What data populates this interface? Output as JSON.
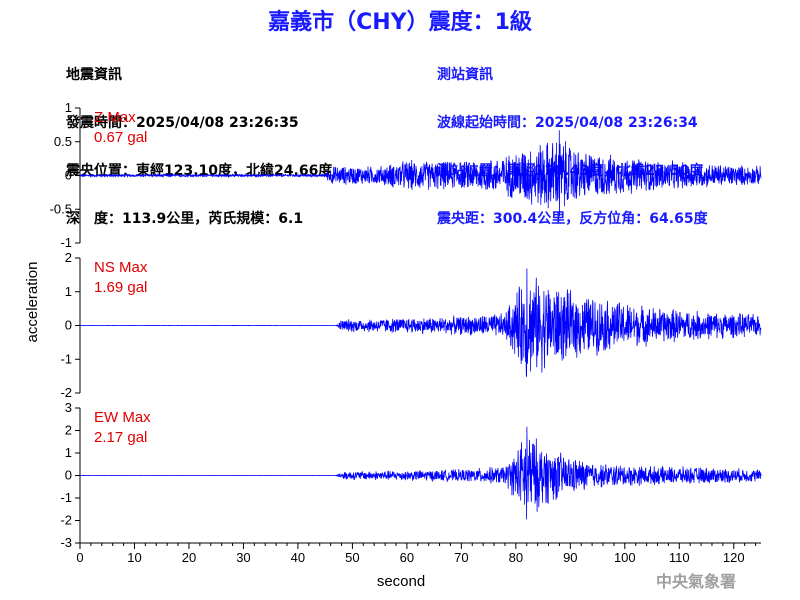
{
  "title": "嘉義市（CHY）震度：1級",
  "quake_info": {
    "heading": "地震資訊",
    "time": "發震時間：2025/04/08 23:26:35",
    "location": "震央位置：東經123.10度，北緯24.66度",
    "depth_mag": "深　度：113.9公里，芮氏規模：6.1"
  },
  "station_info": {
    "heading": "測站資訊",
    "wave_time": "波線起始時間：2025/04/08 23:26:34",
    "location": "測站位置：東經120.43度，北緯23.50度",
    "distance": "震央距：300.4公里，反方位角：64.65度"
  },
  "agency": "中央氣象署",
  "chart_data": {
    "type": "line",
    "xlabel": "second",
    "ylabel": "acceleration",
    "xlim": [
      0,
      125
    ],
    "xticks": [
      0,
      10,
      20,
      30,
      40,
      50,
      60,
      70,
      80,
      90,
      100,
      110,
      120
    ],
    "series_color": "#0000ff",
    "label_color": "#e00000",
    "panels": [
      {
        "name": "Z Max",
        "max_label": "0.67 gal",
        "max_value": 0.67,
        "ylim": [
          -1,
          1
        ],
        "yticks": [
          -1,
          -0.5,
          0,
          0.5,
          1
        ],
        "envelope": [
          [
            0,
            0.02
          ],
          [
            45,
            0.02
          ],
          [
            46,
            0.15
          ],
          [
            55,
            0.15
          ],
          [
            60,
            0.25
          ],
          [
            70,
            0.22
          ],
          [
            78,
            0.32
          ],
          [
            81,
            0.45
          ],
          [
            85,
            0.55
          ],
          [
            88,
            0.62
          ],
          [
            92,
            0.4
          ],
          [
            100,
            0.3
          ],
          [
            110,
            0.22
          ],
          [
            125,
            0.15
          ]
        ]
      },
      {
        "name": "NS Max",
        "max_label": "1.69 gal",
        "max_value": 1.69,
        "ylim": [
          -2,
          2
        ],
        "yticks": [
          -2,
          -1,
          0,
          1,
          2
        ],
        "envelope": [
          [
            0,
            0.005
          ],
          [
            47,
            0.005
          ],
          [
            48,
            0.2
          ],
          [
            60,
            0.25
          ],
          [
            70,
            0.3
          ],
          [
            78,
            0.4
          ],
          [
            80,
            1.1
          ],
          [
            82,
            1.65
          ],
          [
            86,
            1.4
          ],
          [
            90,
            1.1
          ],
          [
            95,
            0.9
          ],
          [
            105,
            0.6
          ],
          [
            115,
            0.45
          ],
          [
            125,
            0.35
          ]
        ]
      },
      {
        "name": "EW Max",
        "max_label": "2.17 gal",
        "max_value": 2.17,
        "ylim": [
          -3,
          3
        ],
        "yticks": [
          -3,
          -2,
          -1,
          0,
          1,
          2,
          3
        ],
        "envelope": [
          [
            0,
            0.005
          ],
          [
            47,
            0.005
          ],
          [
            48,
            0.2
          ],
          [
            60,
            0.25
          ],
          [
            70,
            0.3
          ],
          [
            78,
            0.45
          ],
          [
            80,
            1.2
          ],
          [
            82,
            2.15
          ],
          [
            85,
            1.5
          ],
          [
            90,
            0.9
          ],
          [
            95,
            0.6
          ],
          [
            105,
            0.45
          ],
          [
            115,
            0.4
          ],
          [
            125,
            0.3
          ]
        ]
      }
    ]
  }
}
